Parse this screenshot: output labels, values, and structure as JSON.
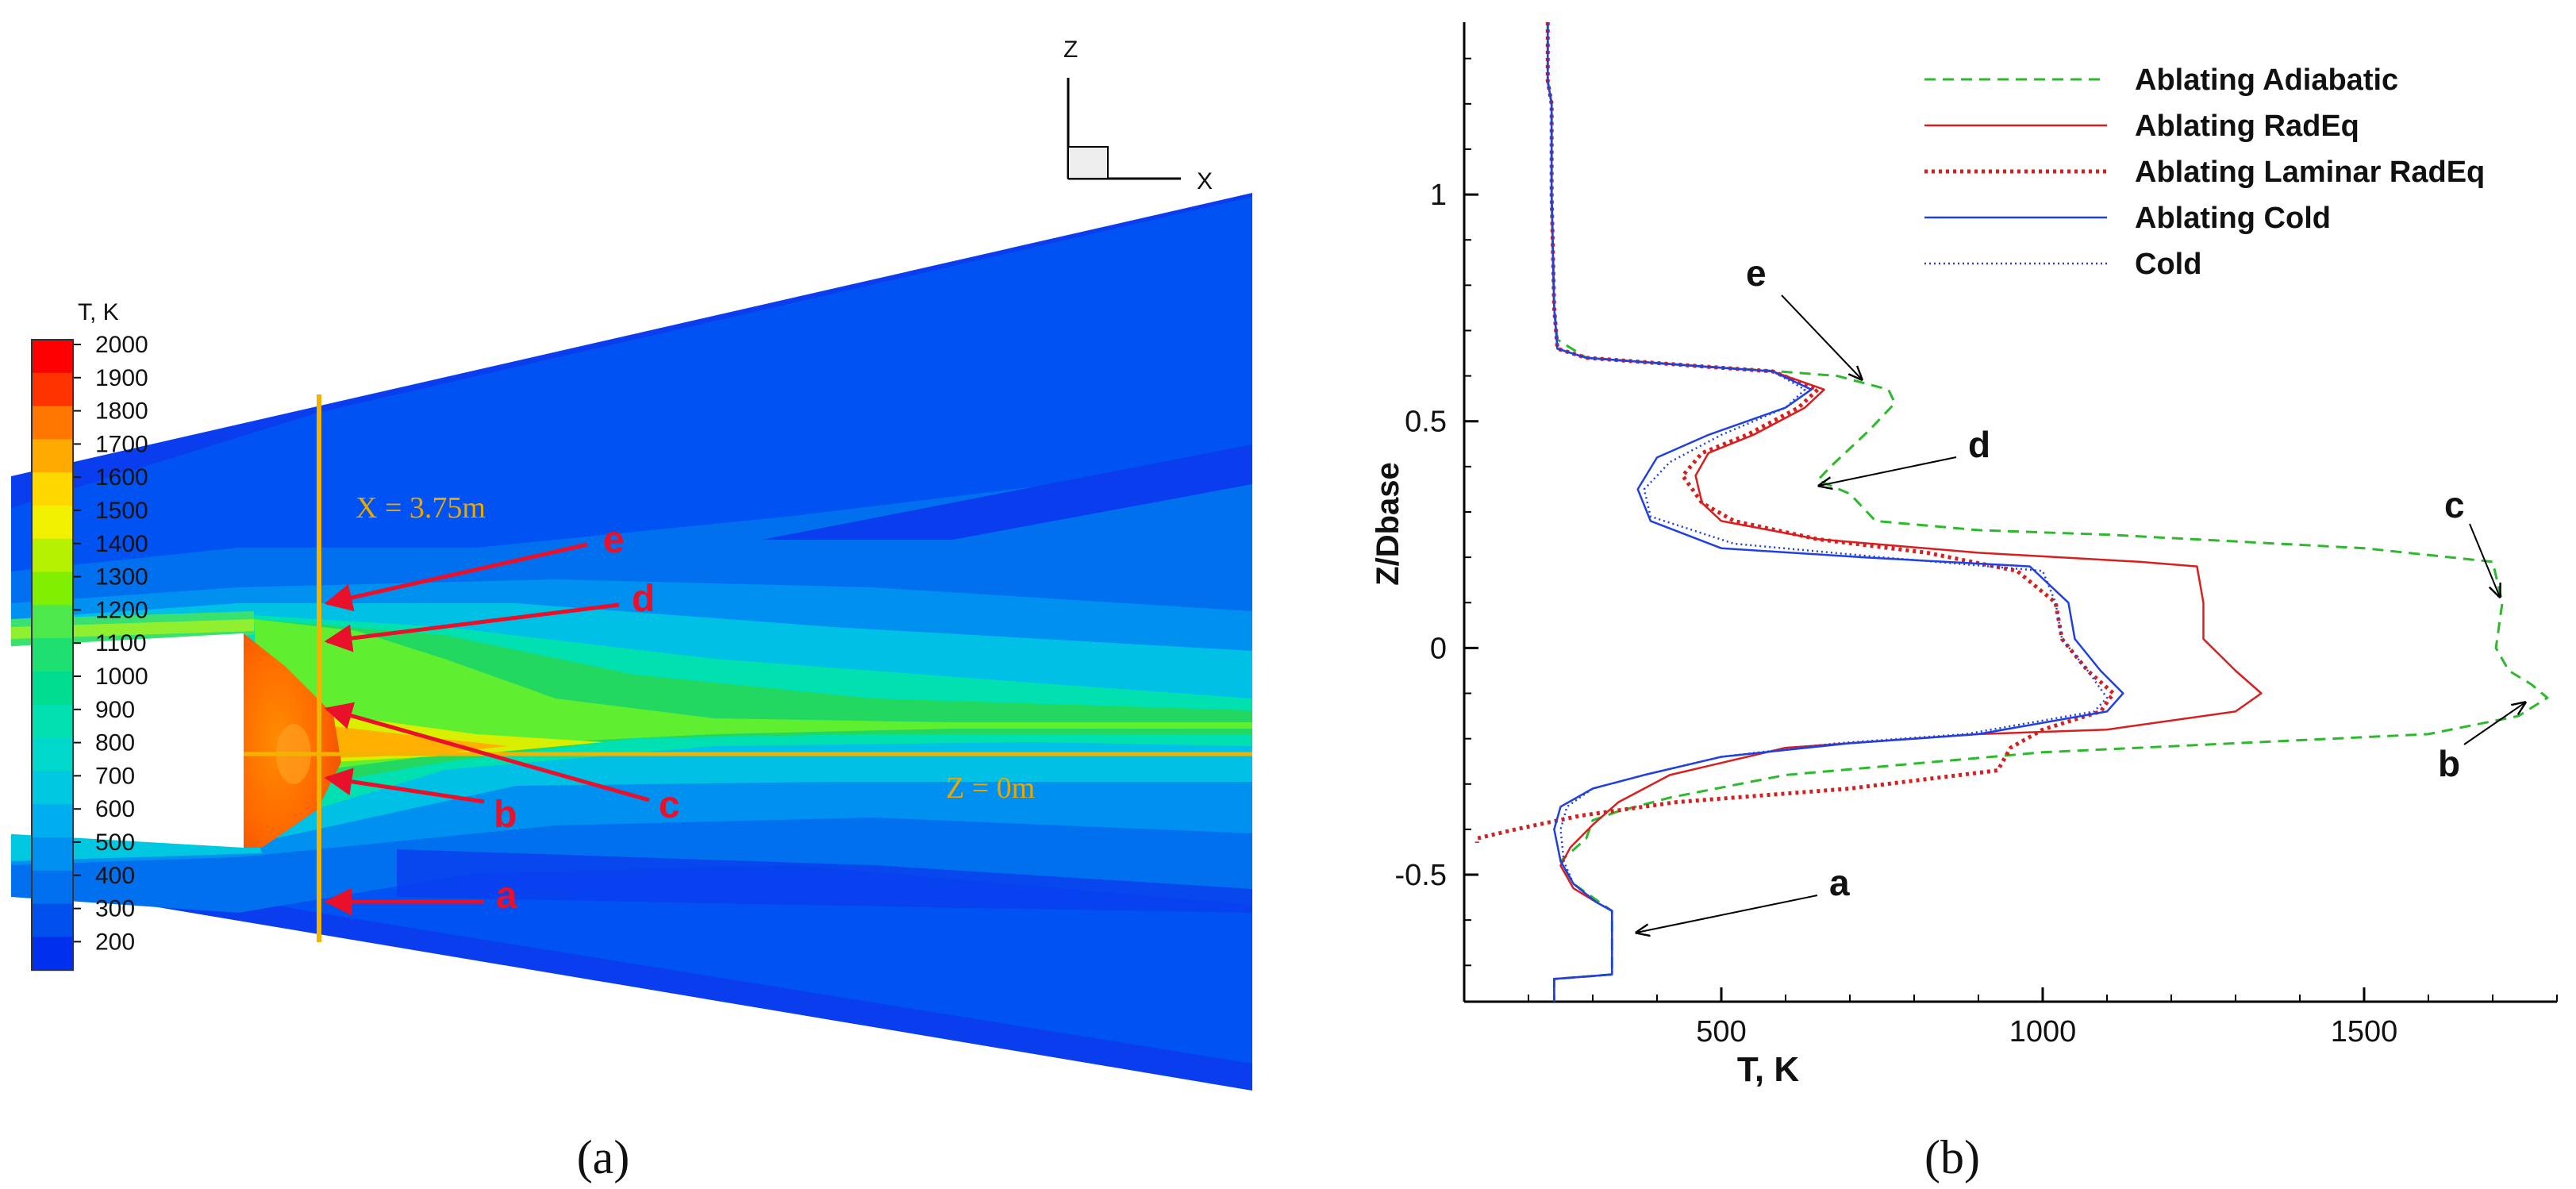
{
  "panel_a": {
    "caption": "(a)",
    "legend_title": "T, K",
    "colorbar_levels": [
      2000,
      1900,
      1800,
      1700,
      1600,
      1500,
      1400,
      1300,
      1200,
      1100,
      1000,
      900,
      800,
      700,
      600,
      500,
      400,
      300,
      200
    ],
    "colorbar_colors": [
      "#ff0000",
      "#ff3300",
      "#ff7700",
      "#ffaa00",
      "#ffd800",
      "#f0f000",
      "#b4f000",
      "#80f000",
      "#4ce84c",
      "#1ee070",
      "#00dd90",
      "#00e0b0",
      "#00d8cc",
      "#00c8e0",
      "#00aef0",
      "#0090f0",
      "#0070ee",
      "#0050ee",
      "#0030ee"
    ],
    "line_x_label": "X = 3.75m",
    "line_z_label": "Z = 0m",
    "axis_z": "Z",
    "axis_x": "X",
    "point_labels": [
      "e",
      "d",
      "c",
      "b",
      "a"
    ],
    "colors": {
      "arrow": "#e8102a",
      "guide_line": "#f2b400",
      "guide_text": "#e8a800"
    }
  },
  "panel_b": {
    "caption": "(b)",
    "point_labels": [
      "e",
      "d",
      "c",
      "b",
      "a"
    ]
  },
  "chart_data": {
    "type": "line",
    "xlabel": "T, K",
    "ylabel": "Z/Dbase",
    "xlim": [
      100,
      1800
    ],
    "ylim": [
      -0.78,
      1.38
    ],
    "xticks": [
      500,
      1000,
      1500
    ],
    "yticks": [
      -0.5,
      0,
      0.5,
      1
    ],
    "ytick_labels": [
      "-0.5",
      "0",
      "0.5",
      "1"
    ],
    "grid": false,
    "legend_position": "top-right",
    "series": [
      {
        "name": "Ablating Adiabatic",
        "color": "#2db82d",
        "dash": "14,9",
        "width": 3,
        "points": [
          [
            230,
            1.38
          ],
          [
            230,
            1.25
          ],
          [
            236,
            1.2
          ],
          [
            236,
            1.0
          ],
          [
            240,
            0.75
          ],
          [
            245,
            0.68
          ],
          [
            290,
            0.64
          ],
          [
            480,
            0.62
          ],
          [
            590,
            0.61
          ],
          [
            680,
            0.6
          ],
          [
            760,
            0.57
          ],
          [
            770,
            0.54
          ],
          [
            730,
            0.48
          ],
          [
            670,
            0.4
          ],
          [
            650,
            0.37
          ],
          [
            700,
            0.34
          ],
          [
            740,
            0.28
          ],
          [
            900,
            0.26
          ],
          [
            1100,
            0.25
          ],
          [
            1500,
            0.22
          ],
          [
            1700,
            0.19
          ],
          [
            1715,
            0.1
          ],
          [
            1705,
            0.0
          ],
          [
            1725,
            -0.05
          ],
          [
            1760,
            -0.08
          ],
          [
            1785,
            -0.11
          ],
          [
            1740,
            -0.15
          ],
          [
            1600,
            -0.19
          ],
          [
            1300,
            -0.21
          ],
          [
            1000,
            -0.23
          ],
          [
            600,
            -0.28
          ],
          [
            420,
            -0.33
          ],
          [
            340,
            -0.36
          ],
          [
            300,
            -0.38
          ],
          [
            290,
            -0.42
          ],
          [
            250,
            -0.47
          ],
          [
            270,
            -0.52
          ],
          [
            300,
            -0.55
          ],
          [
            330,
            -0.58
          ],
          [
            330,
            -0.72
          ],
          [
            240,
            -0.73
          ],
          [
            240,
            -0.78
          ]
        ]
      },
      {
        "name": "Ablating RadEq",
        "color": "#d62020",
        "dash": "",
        "width": 2.5,
        "points": [
          [
            230,
            1.38
          ],
          [
            230,
            1.25
          ],
          [
            236,
            1.2
          ],
          [
            236,
            1.0
          ],
          [
            240,
            0.75
          ],
          [
            245,
            0.66
          ],
          [
            290,
            0.64
          ],
          [
            480,
            0.62
          ],
          [
            580,
            0.61
          ],
          [
            660,
            0.57
          ],
          [
            630,
            0.53
          ],
          [
            550,
            0.47
          ],
          [
            480,
            0.43
          ],
          [
            460,
            0.38
          ],
          [
            470,
            0.32
          ],
          [
            500,
            0.28
          ],
          [
            650,
            0.24
          ],
          [
            900,
            0.21
          ],
          [
            1150,
            0.19
          ],
          [
            1240,
            0.18
          ],
          [
            1250,
            0.1
          ],
          [
            1250,
            0.02
          ],
          [
            1300,
            -0.05
          ],
          [
            1340,
            -0.1
          ],
          [
            1300,
            -0.14
          ],
          [
            1100,
            -0.18
          ],
          [
            900,
            -0.19
          ],
          [
            600,
            -0.22
          ],
          [
            420,
            -0.28
          ],
          [
            340,
            -0.34
          ],
          [
            300,
            -0.39
          ],
          [
            265,
            -0.44
          ],
          [
            250,
            -0.48
          ],
          [
            270,
            -0.53
          ],
          [
            305,
            -0.56
          ],
          [
            330,
            -0.58
          ],
          [
            330,
            -0.72
          ],
          [
            240,
            -0.73
          ],
          [
            240,
            -0.78
          ]
        ]
      },
      {
        "name": "Ablating Laminar RadEq",
        "color": "#d62020",
        "dash": "4,5",
        "width": 5,
        "points": [
          [
            230,
            1.38
          ],
          [
            230,
            1.25
          ],
          [
            236,
            1.2
          ],
          [
            236,
            1.0
          ],
          [
            240,
            0.75
          ],
          [
            245,
            0.66
          ],
          [
            290,
            0.64
          ],
          [
            480,
            0.62
          ],
          [
            580,
            0.61
          ],
          [
            650,
            0.57
          ],
          [
            620,
            0.53
          ],
          [
            540,
            0.47
          ],
          [
            470,
            0.43
          ],
          [
            440,
            0.38
          ],
          [
            470,
            0.32
          ],
          [
            520,
            0.28
          ],
          [
            650,
            0.24
          ],
          [
            820,
            0.21
          ],
          [
            960,
            0.17
          ],
          [
            1020,
            0.1
          ],
          [
            1030,
            0.02
          ],
          [
            1070,
            -0.05
          ],
          [
            1110,
            -0.1
          ],
          [
            1090,
            -0.14
          ],
          [
            1000,
            -0.18
          ],
          [
            950,
            -0.22
          ],
          [
            930,
            -0.27
          ],
          [
            700,
            -0.31
          ],
          [
            430,
            -0.34
          ],
          [
            280,
            -0.37
          ],
          [
            180,
            -0.4
          ],
          [
            120,
            -0.42
          ],
          [
            120,
            -0.43
          ]
        ]
      },
      {
        "name": "Ablating Cold",
        "color": "#2040e0",
        "dash": "",
        "width": 2.5,
        "points": [
          [
            230,
            1.38
          ],
          [
            230,
            1.25
          ],
          [
            236,
            1.2
          ],
          [
            236,
            1.0
          ],
          [
            240,
            0.75
          ],
          [
            245,
            0.66
          ],
          [
            290,
            0.64
          ],
          [
            480,
            0.62
          ],
          [
            580,
            0.61
          ],
          [
            640,
            0.57
          ],
          [
            600,
            0.53
          ],
          [
            480,
            0.47
          ],
          [
            400,
            0.42
          ],
          [
            370,
            0.35
          ],
          [
            390,
            0.28
          ],
          [
            500,
            0.22
          ],
          [
            720,
            0.2
          ],
          [
            980,
            0.18
          ],
          [
            1040,
            0.1
          ],
          [
            1050,
            0.02
          ],
          [
            1090,
            -0.05
          ],
          [
            1125,
            -0.1
          ],
          [
            1100,
            -0.14
          ],
          [
            900,
            -0.19
          ],
          [
            700,
            -0.21
          ],
          [
            500,
            -0.24
          ],
          [
            380,
            -0.28
          ],
          [
            300,
            -0.31
          ],
          [
            250,
            -0.35
          ],
          [
            240,
            -0.4
          ],
          [
            250,
            -0.47
          ],
          [
            270,
            -0.52
          ],
          [
            305,
            -0.56
          ],
          [
            330,
            -0.58
          ],
          [
            330,
            -0.72
          ],
          [
            240,
            -0.73
          ],
          [
            240,
            -0.78
          ]
        ]
      },
      {
        "name": "Cold",
        "color": "#2040e0",
        "dash": "2,4",
        "width": 2.5,
        "points": [
          [
            230,
            1.38
          ],
          [
            230,
            1.25
          ],
          [
            236,
            1.2
          ],
          [
            236,
            1.0
          ],
          [
            240,
            0.75
          ],
          [
            245,
            0.66
          ],
          [
            290,
            0.64
          ],
          [
            480,
            0.62
          ],
          [
            580,
            0.61
          ],
          [
            630,
            0.57
          ],
          [
            600,
            0.53
          ],
          [
            500,
            0.47
          ],
          [
            420,
            0.41
          ],
          [
            380,
            0.35
          ],
          [
            390,
            0.29
          ],
          [
            520,
            0.23
          ],
          [
            750,
            0.2
          ],
          [
            1000,
            0.17
          ],
          [
            1020,
            0.1
          ],
          [
            1030,
            0.02
          ],
          [
            1070,
            -0.05
          ],
          [
            1100,
            -0.11
          ],
          [
            1080,
            -0.14
          ],
          [
            880,
            -0.19
          ],
          [
            680,
            -0.21
          ],
          [
            500,
            -0.24
          ],
          [
            380,
            -0.28
          ],
          [
            300,
            -0.31
          ],
          [
            260,
            -0.35
          ],
          [
            250,
            -0.4
          ],
          [
            255,
            -0.47
          ],
          [
            270,
            -0.52
          ],
          [
            305,
            -0.56
          ],
          [
            330,
            -0.58
          ],
          [
            330,
            -0.72
          ],
          [
            240,
            -0.73
          ],
          [
            240,
            -0.78
          ]
        ]
      }
    ],
    "annotations": [
      {
        "label": "e",
        "point": [
          780,
          0.61
        ]
      },
      {
        "label": "d",
        "point": [
          660,
          0.38
        ]
      },
      {
        "label": "c",
        "point": [
          1720,
          0.12
        ]
      },
      {
        "label": "b",
        "point": [
          1785,
          -0.11
        ]
      },
      {
        "label": "a",
        "point": [
          360,
          -0.62
        ]
      }
    ]
  }
}
